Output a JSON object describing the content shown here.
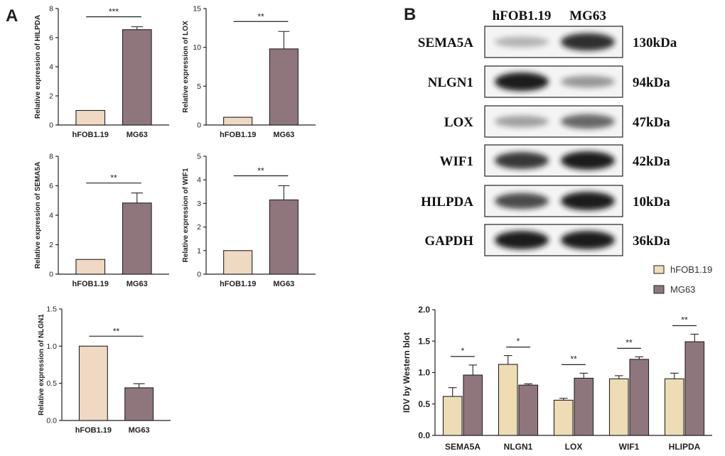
{
  "panel_labels": {
    "a": "A",
    "b": "B"
  },
  "colors": {
    "hfob": "#efd9c2",
    "mg63": "#8f767d",
    "wb_hfob": "#eedcb4",
    "axis": "#222222",
    "band": "#161616"
  },
  "chart_data": [
    {
      "type": "bar",
      "ylabel": "Relative  expression of HILPDA",
      "categories": [
        "hFOB1.19",
        "MG63"
      ],
      "values": [
        1,
        6.55
      ],
      "errors": [
        0,
        0.2
      ],
      "ylim": [
        0,
        8
      ],
      "yticks": [
        0,
        2,
        4,
        6,
        8
      ],
      "significance": "***"
    },
    {
      "type": "bar",
      "ylabel": "Relative  expression of LOX",
      "categories": [
        "hFOB1.19",
        "MG63"
      ],
      "values": [
        1,
        9.8
      ],
      "errors": [
        0,
        2.25
      ],
      "ylim": [
        0,
        15
      ],
      "yticks": [
        0,
        5,
        10,
        15
      ],
      "significance": "**"
    },
    {
      "type": "bar",
      "ylabel": "Relative  expression of SEMA5A",
      "categories": [
        "hFOB1.19",
        "MG63"
      ],
      "values": [
        1,
        4.83
      ],
      "errors": [
        0,
        0.68
      ],
      "ylim": [
        0,
        8
      ],
      "yticks": [
        0,
        2,
        4,
        6,
        8
      ],
      "significance": "**"
    },
    {
      "type": "bar",
      "ylabel": "Relative  expression of WIF1",
      "categories": [
        "hFOB1.19",
        "MG63"
      ],
      "values": [
        1,
        3.15
      ],
      "errors": [
        0,
        0.6
      ],
      "ylim": [
        0,
        5
      ],
      "yticks": [
        0,
        1,
        2,
        3,
        4,
        5
      ],
      "significance": "**"
    },
    {
      "type": "bar",
      "ylabel": "Relative  expression of NLGN1",
      "categories": [
        "hFOB1.19",
        "MG63"
      ],
      "values": [
        1,
        0.44
      ],
      "errors": [
        0,
        0.055
      ],
      "ylim": [
        0,
        1.5
      ],
      "yticks": [
        0,
        0.5,
        1.0,
        1.5
      ],
      "ytick_labels": [
        "0.0",
        "0.5",
        "1.0",
        "1.5"
      ],
      "significance": "**"
    },
    {
      "type": "bar",
      "ylabel": "IDV by Western blot",
      "categories": [
        "SEMA5A",
        "NLGN1",
        "LOX",
        "WIF1",
        "HLIPDA"
      ],
      "series": [
        {
          "name": "hFOB1.19",
          "values": [
            0.62,
            1.13,
            0.56,
            0.9,
            0.9
          ],
          "errors": [
            0.14,
            0.14,
            0.03,
            0.05,
            0.09
          ]
        },
        {
          "name": "MG63",
          "values": [
            0.96,
            0.8,
            0.91,
            1.21,
            1.49
          ],
          "errors": [
            0.16,
            0.02,
            0.08,
            0.04,
            0.12
          ]
        }
      ],
      "significance": [
        "*",
        "*",
        "**",
        "**",
        "**"
      ],
      "ylim": [
        0,
        2.0
      ],
      "yticks": [
        0,
        0.5,
        1.0,
        1.5,
        2.0
      ],
      "ytick_labels": [
        "0.0",
        "0.5",
        "1.0",
        "1.5",
        "2.0"
      ],
      "legend_position": "top-right"
    }
  ],
  "western_blot": {
    "columns": [
      "hFOB1.19",
      "MG63"
    ],
    "rows": [
      {
        "protein": "SEMA5A",
        "size": "130kDa",
        "intensity": [
          0.2,
          0.9
        ]
      },
      {
        "protein": "NLGN1",
        "size": "94kDa",
        "intensity": [
          1.0,
          0.35
        ]
      },
      {
        "protein": "LOX",
        "size": "47kDa",
        "intensity": [
          0.3,
          0.6
        ]
      },
      {
        "protein": "WIF1",
        "size": "42kDa",
        "intensity": [
          0.85,
          1.0
        ]
      },
      {
        "protein": "HILPDA",
        "size": "10kDa",
        "intensity": [
          0.75,
          1.0
        ]
      },
      {
        "protein": "GAPDH",
        "size": "36kDa",
        "intensity": [
          1.0,
          1.0
        ]
      }
    ]
  }
}
